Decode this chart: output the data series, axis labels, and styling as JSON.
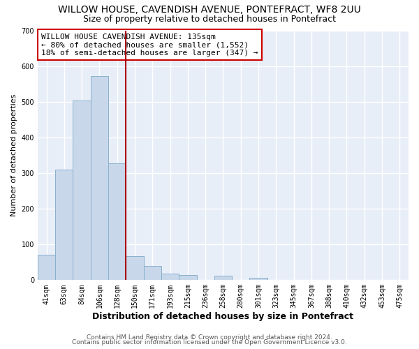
{
  "title": "WILLOW HOUSE, CAVENDISH AVENUE, PONTEFRACT, WF8 2UU",
  "subtitle": "Size of property relative to detached houses in Pontefract",
  "xlabel": "Distribution of detached houses by size in Pontefract",
  "ylabel": "Number of detached properties",
  "bar_labels": [
    "41sqm",
    "63sqm",
    "84sqm",
    "106sqm",
    "128sqm",
    "150sqm",
    "171sqm",
    "193sqm",
    "215sqm",
    "236sqm",
    "258sqm",
    "280sqm",
    "301sqm",
    "323sqm",
    "345sqm",
    "367sqm",
    "388sqm",
    "410sqm",
    "432sqm",
    "453sqm",
    "475sqm"
  ],
  "bar_values": [
    72,
    310,
    505,
    572,
    328,
    67,
    40,
    19,
    15,
    0,
    12,
    0,
    7,
    0,
    0,
    0,
    0,
    0,
    0,
    0,
    0
  ],
  "bar_color": "#c8d8ea",
  "bar_edge_color": "#8ab0cc",
  "vline_x": 4.5,
  "vline_color": "#aa0000",
  "annotation_text": "WILLOW HOUSE CAVENDISH AVENUE: 135sqm\n← 80% of detached houses are smaller (1,552)\n18% of semi-detached houses are larger (347) →",
  "annotation_box_color": "#ffffff",
  "annotation_box_edge": "#cc0000",
  "ylim": [
    0,
    700
  ],
  "yticks": [
    0,
    100,
    200,
    300,
    400,
    500,
    600,
    700
  ],
  "footer_line1": "Contains HM Land Registry data © Crown copyright and database right 2024.",
  "footer_line2": "Contains public sector information licensed under the Open Government Licence v3.0.",
  "background_color": "#ffffff",
  "plot_background": "#e8eef8",
  "grid_color": "#ffffff",
  "title_fontsize": 10,
  "subtitle_fontsize": 9,
  "xlabel_fontsize": 9,
  "ylabel_fontsize": 8,
  "tick_fontsize": 7,
  "annotation_fontsize": 8,
  "footer_fontsize": 6.5
}
